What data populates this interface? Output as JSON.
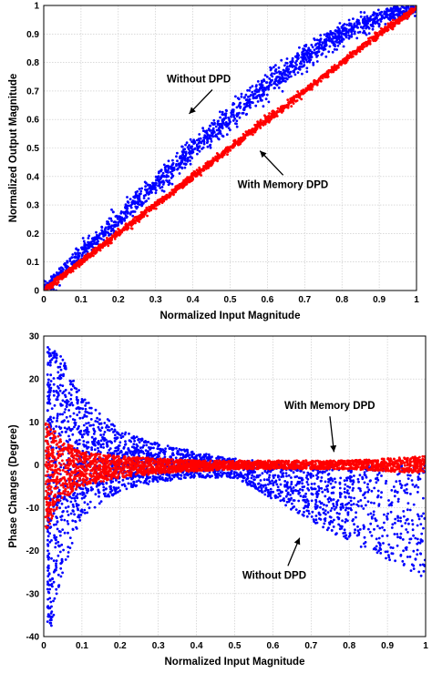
{
  "chart_data": [
    {
      "type": "scatter",
      "title": "",
      "xlabel": "Normalized Input Magnitude",
      "ylabel": "Normalized Output Magnitude",
      "xlim": [
        0,
        1
      ],
      "ylim": [
        0,
        1
      ],
      "xticks": [
        "0",
        "0.1",
        "0.2",
        "0.3",
        "0.4",
        "0.5",
        "0.6",
        "0.7",
        "0.8",
        "0.9",
        "1"
      ],
      "yticks": [
        "0",
        "0.1",
        "0.2",
        "0.3",
        "0.4",
        "0.5",
        "0.6",
        "0.7",
        "0.8",
        "0.9",
        "1"
      ],
      "grid": true,
      "series": [
        {
          "name": "Without DPD",
          "color": "#0000ff",
          "x": [
            0,
            0.1,
            0.2,
            0.3,
            0.4,
            0.5,
            0.6,
            0.7,
            0.8,
            0.9,
            1.0
          ],
          "y": [
            0,
            0.13,
            0.25,
            0.37,
            0.49,
            0.61,
            0.72,
            0.82,
            0.9,
            0.96,
            0.99
          ]
        },
        {
          "name": "With Memory DPD",
          "color": "#ff0000",
          "x": [
            0,
            0.1,
            0.2,
            0.3,
            0.4,
            0.5,
            0.6,
            0.7,
            0.8,
            0.9,
            1.0
          ],
          "y": [
            0,
            0.1,
            0.2,
            0.3,
            0.4,
            0.5,
            0.6,
            0.7,
            0.8,
            0.9,
            0.99
          ]
        }
      ],
      "annotations": [
        {
          "text": "Without DPD",
          "x": 0.33,
          "y": 0.73,
          "arrow_to": [
            0.39,
            0.62
          ]
        },
        {
          "text": "With Memory DPD",
          "x": 0.52,
          "y": 0.36,
          "arrow_to": [
            0.58,
            0.49
          ]
        }
      ]
    },
    {
      "type": "scatter",
      "title": "",
      "xlabel": "Normalized Input Magnitude",
      "ylabel": "Phase Changes (Degree)",
      "xlim": [
        0,
        1
      ],
      "ylim": [
        -40,
        30
      ],
      "xticks": [
        "0",
        "0.1",
        "0.2",
        "0.3",
        "0.4",
        "0.5",
        "0.6",
        "0.7",
        "0.8",
        "0.9",
        "1"
      ],
      "yticks": [
        "30",
        "20",
        "10",
        "0",
        "-10",
        "-20",
        "-30",
        "-40"
      ],
      "grid": true,
      "series": [
        {
          "name": "Without DPD",
          "color": "#0000ff",
          "x": [
            0.02,
            0.05,
            0.1,
            0.2,
            0.3,
            0.4,
            0.5,
            0.6,
            0.7,
            0.8,
            0.9,
            1.0
          ],
          "y_upper": [
            28,
            25,
            16,
            8,
            5,
            3,
            1.5,
            0.5,
            0,
            0,
            0,
            0
          ],
          "y_lower": [
            -38,
            -25,
            -12,
            -6,
            -4,
            -3,
            -3,
            -8,
            -13,
            -18,
            -22,
            -26.5
          ]
        },
        {
          "name": "With Memory DPD",
          "color": "#ff0000",
          "x": [
            0.01,
            0.05,
            0.1,
            0.2,
            0.3,
            0.4,
            0.5,
            0.6,
            0.7,
            0.8,
            0.9,
            1.0
          ],
          "y_upper": [
            10,
            6,
            3,
            2,
            1.5,
            1,
            1,
            1,
            1,
            1,
            1.5,
            2
          ],
          "y_lower": [
            -15,
            -8,
            -5,
            -3,
            -2,
            -1.5,
            -1,
            -1,
            -1,
            -1,
            -1.5,
            -2
          ]
        }
      ],
      "annotations": [
        {
          "text": "With Memory DPD",
          "x": 0.63,
          "y": 13,
          "arrow_to": [
            0.76,
            3
          ]
        },
        {
          "text": "Without DPD",
          "x": 0.52,
          "y": -26.5,
          "arrow_to": [
            0.67,
            -17
          ]
        }
      ]
    }
  ]
}
